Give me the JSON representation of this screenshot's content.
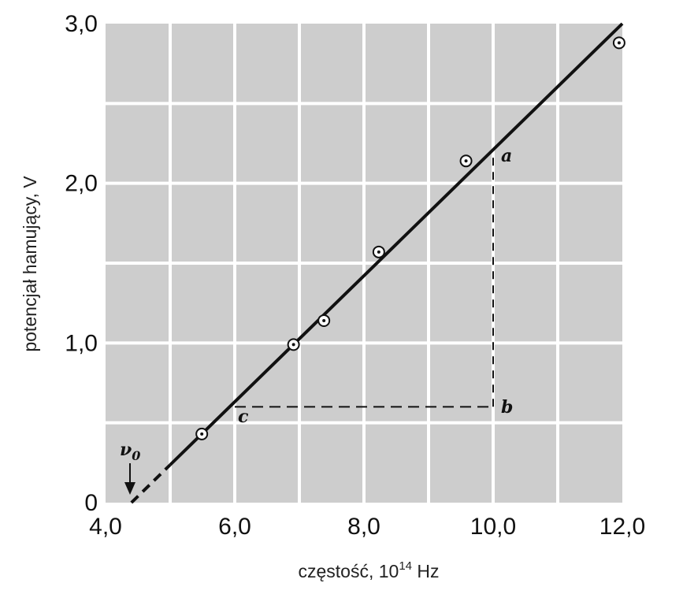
{
  "chart_data": {
    "type": "scatter",
    "xlabel": "częstość, 10",
    "xlabel_sup": "14",
    "xlabel_unit": " Hz",
    "ylabel": "potencjał hamujący, V",
    "xlim": [
      4.0,
      12.0
    ],
    "ylim": [
      0,
      3.0
    ],
    "x_ticks": [
      4.0,
      6.0,
      8.0,
      10.0,
      12.0
    ],
    "x_tick_labels": [
      "4,0",
      "6,0",
      "8,0",
      "10,0",
      "12,0"
    ],
    "y_ticks": [
      0,
      1.0,
      2.0,
      3.0
    ],
    "y_tick_labels": [
      "0",
      "1,0",
      "2,0",
      "3,0"
    ],
    "grid": true,
    "series": [
      {
        "x": [
          5.49,
          6.91,
          7.38,
          8.23,
          9.58,
          11.95
        ],
        "y": [
          0.43,
          0.99,
          1.14,
          1.57,
          2.14,
          2.88
        ]
      }
    ],
    "fit_line": {
      "x": [
        4.4,
        12.0
      ],
      "y": [
        0.0,
        3.0
      ]
    },
    "triangle": {
      "a": {
        "x": 10.0,
        "y": 2.16,
        "label": "a"
      },
      "b": {
        "x": 10.0,
        "y": 0.6,
        "label": "b"
      },
      "c": {
        "x": 6.0,
        "y": 0.6,
        "label": "c"
      }
    },
    "nu0": {
      "x": 4.4,
      "label": "ν",
      "sub": "0"
    },
    "colors": {
      "background": "#cdcdcd",
      "grid": "#ffffff",
      "line": "#111111",
      "marker": "#111111"
    }
  }
}
